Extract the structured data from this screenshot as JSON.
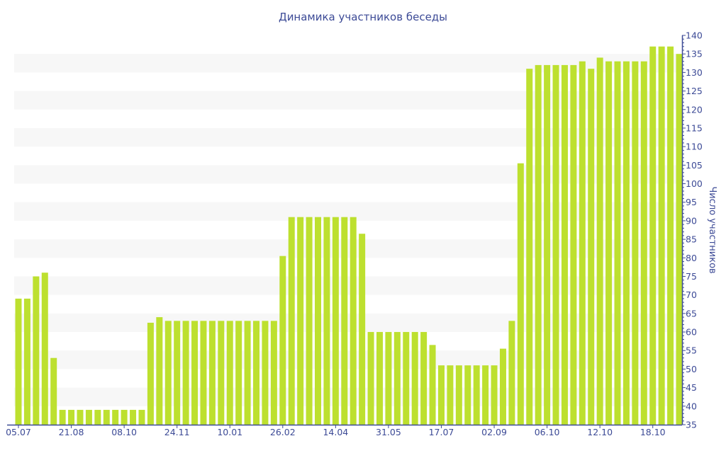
{
  "chart_data": {
    "type": "bar",
    "title": "Динамика участников беседы",
    "xlabel": "",
    "ylabel": "Число участников",
    "ylim": [
      35,
      140
    ],
    "y_ticks": [
      35,
      40,
      45,
      50,
      55,
      60,
      65,
      70,
      75,
      80,
      85,
      90,
      95,
      100,
      105,
      110,
      115,
      120,
      125,
      130,
      135,
      140
    ],
    "x_tick_labels": [
      {
        "index": 0,
        "label": "05.07"
      },
      {
        "index": 6,
        "label": "21.08"
      },
      {
        "index": 12,
        "label": "08.10"
      },
      {
        "index": 18,
        "label": "24.11"
      },
      {
        "index": 24,
        "label": "10.01"
      },
      {
        "index": 30,
        "label": "26.02"
      },
      {
        "index": 36,
        "label": "14.04"
      },
      {
        "index": 42,
        "label": "31.05"
      },
      {
        "index": 48,
        "label": "17.07"
      },
      {
        "index": 54,
        "label": "02.09"
      },
      {
        "index": 60,
        "label": "06.10"
      },
      {
        "index": 66,
        "label": "12.10"
      },
      {
        "index": 72,
        "label": "18.10"
      }
    ],
    "values": [
      69,
      69,
      75,
      76,
      53,
      39,
      39,
      39,
      39,
      39,
      39,
      39,
      39,
      39,
      39,
      62.5,
      64,
      63,
      63,
      63,
      63,
      63,
      63,
      63,
      63,
      63,
      63,
      63,
      63,
      63,
      80.5,
      91,
      91,
      91,
      91,
      91,
      91,
      91,
      91,
      86.5,
      60,
      60,
      60,
      60,
      60,
      60,
      60,
      56.5,
      51,
      51,
      51,
      51,
      51,
      51,
      51,
      55.5,
      63,
      105.5,
      131,
      132,
      132,
      132,
      132,
      132,
      133,
      131,
      134,
      133,
      133,
      133,
      133,
      133,
      137,
      137,
      137,
      135
    ],
    "bar_color": "#bde02f",
    "axis_color": "#3c4a96",
    "band_color": "#f7f7f7",
    "grid": "alternating horizontal bands",
    "legend": "none"
  }
}
